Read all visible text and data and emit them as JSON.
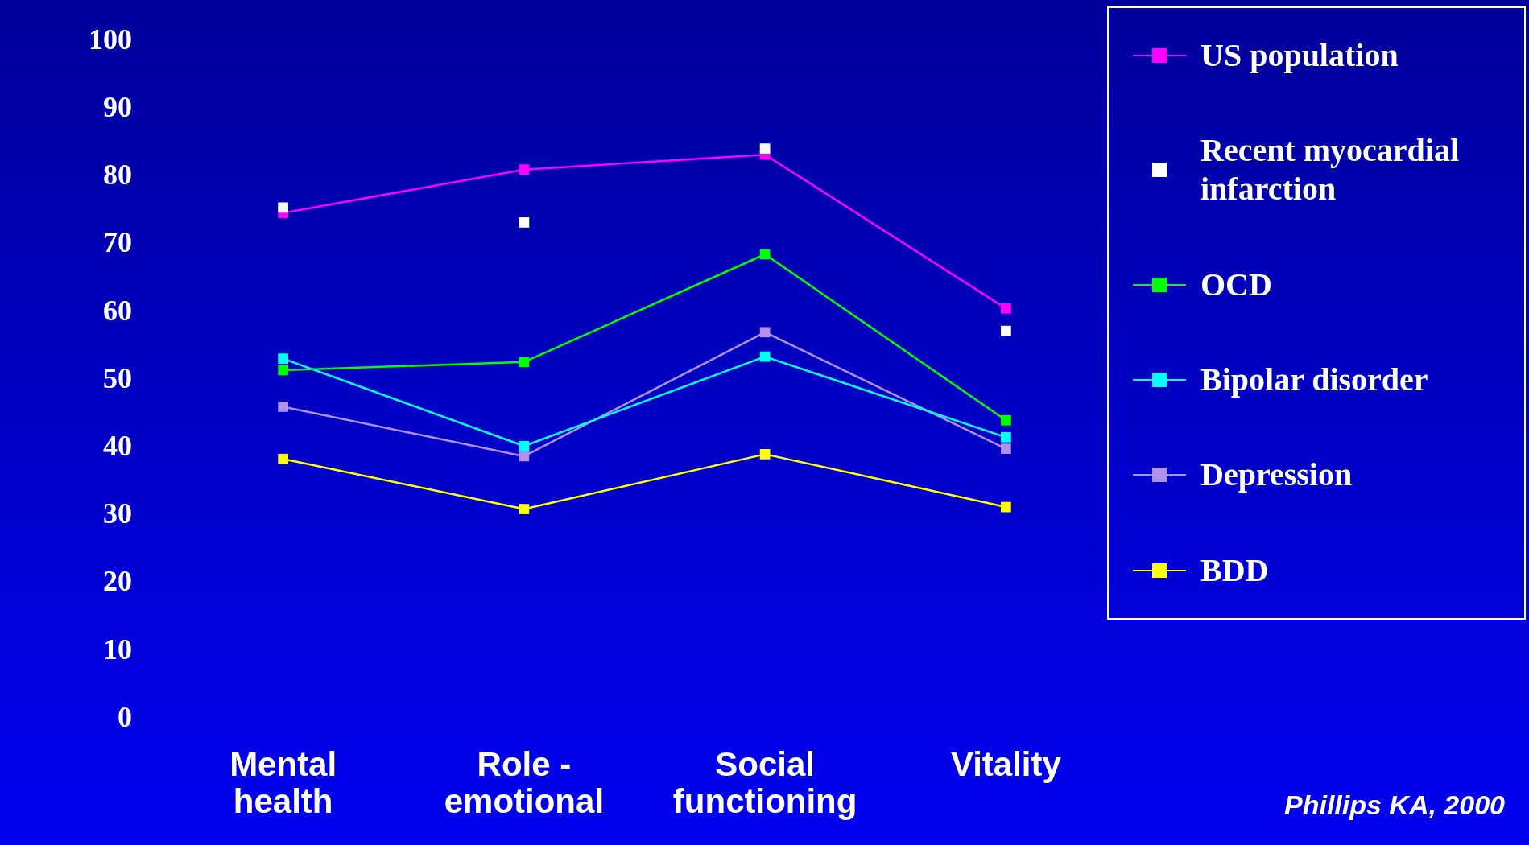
{
  "chart_data": {
    "type": "line",
    "categories": [
      "Mental health",
      "Role - emotional",
      "Social functioning",
      "Vitality"
    ],
    "series": [
      {
        "name": "US population",
        "color": "#ff00ff",
        "values": [
          74.7,
          81.1,
          83.3,
          60.6
        ]
      },
      {
        "name": "Recent myocardial infarction",
        "type": "scatter",
        "color": "#ffffff",
        "values": [
          75.5,
          73.3,
          84.2,
          57.3
        ]
      },
      {
        "name": "OCD",
        "color": "#00ff00",
        "values": [
          51.5,
          52.7,
          68.6,
          44.1
        ]
      },
      {
        "name": "Bipolar disorder",
        "color": "#00ffff",
        "values": [
          53.2,
          40.3,
          53.5,
          41.6
        ]
      },
      {
        "name": "Depression",
        "color": "#b090f0",
        "values": [
          46.1,
          38.8,
          57.1,
          39.9
        ]
      },
      {
        "name": "BDD",
        "color": "#ffff00",
        "values": [
          38.4,
          31.0,
          39.1,
          31.3
        ]
      }
    ],
    "ylim": [
      0,
      100
    ],
    "yticks": [
      0,
      10,
      20,
      30,
      40,
      50,
      60,
      70,
      80,
      90,
      100
    ],
    "grid": false,
    "legend": "top right",
    "marker": "square",
    "line_style": "solid",
    "annotations": [
      "Phillips KA, 2000"
    ]
  }
}
